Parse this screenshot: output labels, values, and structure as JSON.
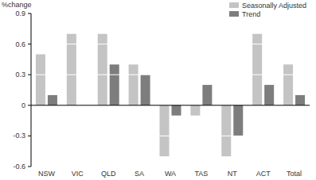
{
  "chart_data": {
    "type": "bar",
    "y_label": "%change",
    "categories": [
      "NSW",
      "VIC",
      "QLD",
      "SA",
      "WA",
      "TAS",
      "NT",
      "ACT",
      "Total"
    ],
    "series": [
      {
        "name": "Seasonally Adjusted",
        "color": "#c4c4c4",
        "values": [
          0.5,
          0.7,
          0.7,
          0.4,
          -0.5,
          -0.1,
          -0.5,
          0.7,
          0.4
        ]
      },
      {
        "name": "Trend",
        "color": "#7d7d7d",
        "values": [
          0.1,
          0.0,
          0.4,
          0.3,
          -0.1,
          0.2,
          -0.3,
          0.2,
          0.1
        ]
      }
    ],
    "ylim": [
      -0.6,
      0.9
    ],
    "yticks": [
      -0.6,
      -0.3,
      0,
      0.3,
      0.6,
      0.9
    ],
    "grid": true,
    "legend": "top-right"
  }
}
